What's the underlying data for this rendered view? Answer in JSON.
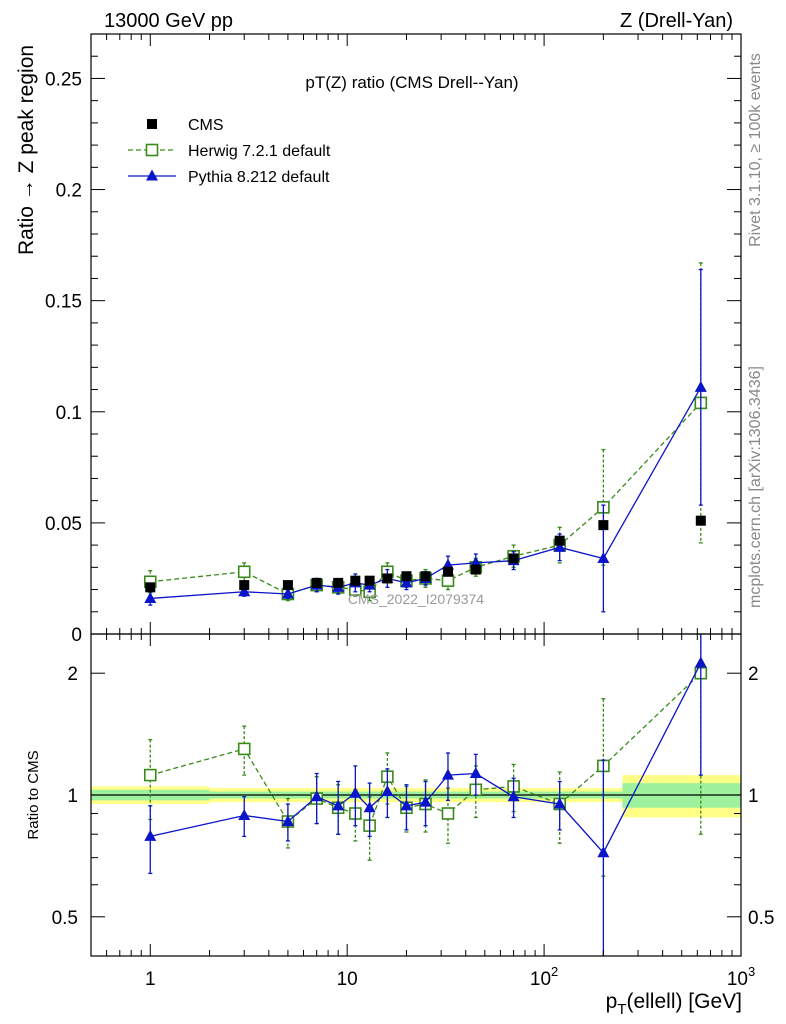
{
  "header": {
    "left": "13000 GeV pp",
    "right": "Z (Drell-Yan)"
  },
  "side_labels": {
    "version": "Rivet 3.1.10, ≥ 100k events",
    "source": "mcplots.cern.ch [arXiv:1306.3436]"
  },
  "watermark": "CMS_2022_I2079374",
  "chart_data": {
    "type": "scatter",
    "title": "pT(Z) ratio (CMS Drell--Yan)",
    "xlabel": "pT(ellell) [GeV]",
    "x_scale": "log",
    "xlim": [
      0.5,
      1000
    ],
    "x_ticks": [
      {
        "value": 1,
        "label": "1"
      },
      {
        "value": 10,
        "label": "10"
      },
      {
        "value": 100,
        "label": "10",
        "sup": "2"
      },
      {
        "value": 1000,
        "label": "10",
        "sup": "3"
      }
    ],
    "legend_position": "top-left",
    "main_panel": {
      "ylabel": "Ratio → Z peak region",
      "ylim": [
        0,
        0.27
      ],
      "y_ticks": [
        {
          "value": 0,
          "label": "0"
        },
        {
          "value": 0.05,
          "label": "0.05"
        },
        {
          "value": 0.1,
          "label": "0.1"
        },
        {
          "value": 0.15,
          "label": "0.15"
        },
        {
          "value": 0.2,
          "label": "0.2"
        },
        {
          "value": 0.25,
          "label": "0.25"
        }
      ],
      "series": [
        {
          "name": "CMS",
          "color": "#000000",
          "marker": "square-filled",
          "line": "none",
          "x": [
            1,
            3,
            5,
            7,
            9,
            11,
            13,
            16,
            20,
            25,
            32.5,
            45,
            70,
            120,
            200,
            625
          ],
          "y": [
            0.021,
            0.022,
            0.022,
            0.023,
            0.023,
            0.024,
            0.024,
            0.025,
            0.026,
            0.026,
            0.028,
            0.029,
            0.034,
            0.042,
            0.049,
            0.051
          ],
          "err": [
            0.001,
            0.001,
            0.001,
            0.001,
            0.001,
            0.001,
            0.001,
            0.001,
            0.001,
            0.001,
            0.001,
            0.001,
            0.001,
            0.001,
            0.001,
            0.001
          ]
        },
        {
          "name": "Herwig 7.2.1 default",
          "color": "#3a8a1a",
          "marker": "square-open",
          "line": "dashed",
          "x": [
            1,
            3,
            5,
            7,
            9,
            11,
            13,
            16,
            20,
            25,
            32.5,
            45,
            70,
            120,
            200,
            625
          ],
          "y": [
            0.0235,
            0.028,
            0.018,
            0.022,
            0.021,
            0.02,
            0.019,
            0.028,
            0.024,
            0.025,
            0.024,
            0.03,
            0.035,
            0.04,
            0.057,
            0.104
          ],
          "err": [
            0.005,
            0.004,
            0.003,
            0.003,
            0.003,
            0.003,
            0.004,
            0.004,
            0.003,
            0.004,
            0.004,
            0.004,
            0.005,
            0.008,
            0.026,
            0.063
          ]
        },
        {
          "name": "Pythia 8.212 default",
          "color": "#0a14c8",
          "marker": "triangle-filled",
          "line": "solid",
          "x": [
            1,
            3,
            5,
            7,
            9,
            11,
            13,
            16,
            20,
            25,
            32.5,
            45,
            70,
            120,
            200,
            625
          ],
          "y": [
            0.016,
            0.019,
            0.018,
            0.022,
            0.021,
            0.023,
            0.022,
            0.025,
            0.023,
            0.025,
            0.031,
            0.032,
            0.033,
            0.039,
            0.034,
            0.111
          ],
          "err": [
            0.003,
            0.002,
            0.002,
            0.003,
            0.003,
            0.004,
            0.003,
            0.004,
            0.003,
            0.003,
            0.004,
            0.004,
            0.004,
            0.006,
            0.024,
            0.053
          ]
        }
      ]
    },
    "ratio_panel": {
      "ylabel": "Ratio to CMS",
      "y_scale": "log",
      "ylim": [
        0.4,
        2.5
      ],
      "y_ticks": [
        {
          "value": 0.5,
          "label": "0.5"
        },
        {
          "value": 1,
          "label": "1"
        },
        {
          "value": 2,
          "label": "2"
        }
      ],
      "reference_band": {
        "x_edges": [
          0.5,
          2,
          250,
          1000
        ],
        "inner": [
          0.03,
          0.02,
          0.07
        ],
        "outer": [
          0.05,
          0.04,
          0.12
        ]
      },
      "series": [
        {
          "name": "Herwig 7.2.1 default",
          "color": "#3a8a1a",
          "marker": "square-open",
          "line": "dashed",
          "x": [
            1,
            3,
            5,
            7,
            9,
            11,
            13,
            16,
            20,
            25,
            32.5,
            45,
            70,
            120,
            200,
            625
          ],
          "y": [
            1.12,
            1.3,
            0.86,
            0.98,
            0.93,
            0.9,
            0.84,
            1.11,
            0.93,
            0.95,
            0.9,
            1.03,
            1.05,
            0.95,
            1.18,
            2.0
          ],
          "err": [
            0.25,
            0.18,
            0.12,
            0.13,
            0.13,
            0.13,
            0.15,
            0.16,
            0.12,
            0.14,
            0.14,
            0.15,
            0.14,
            0.19,
            0.55,
            1.2
          ]
        },
        {
          "name": "Pythia 8.212 default",
          "color": "#0a14c8",
          "marker": "triangle-filled",
          "line": "solid",
          "x": [
            1,
            3,
            5,
            7,
            9,
            11,
            13,
            16,
            20,
            25,
            32.5,
            45,
            70,
            120,
            200,
            625
          ],
          "y": [
            0.79,
            0.89,
            0.86,
            0.99,
            0.94,
            1.01,
            0.93,
            1.02,
            0.94,
            0.96,
            1.12,
            1.13,
            0.99,
            0.95,
            0.72,
            2.12
          ],
          "err": [
            0.15,
            0.1,
            0.09,
            0.14,
            0.14,
            0.17,
            0.14,
            0.14,
            0.12,
            0.12,
            0.15,
            0.13,
            0.11,
            0.13,
            0.5,
            1.0
          ]
        }
      ]
    }
  }
}
